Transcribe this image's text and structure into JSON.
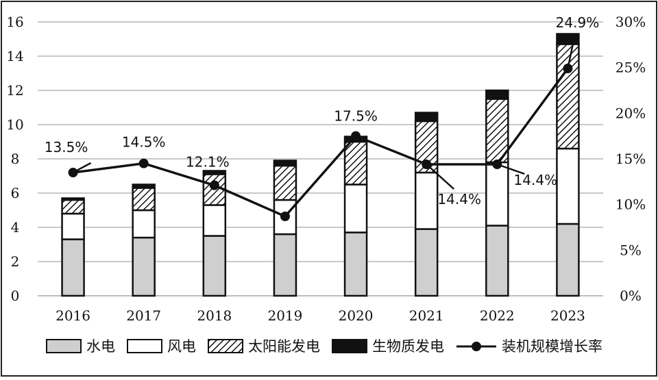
{
  "chart_data": {
    "type": "bar",
    "stacked": true,
    "categories": [
      "2016",
      "2017",
      "2018",
      "2019",
      "2020",
      "2021",
      "2022",
      "2023"
    ],
    "series": [
      {
        "name": "水电",
        "values": [
          3.3,
          3.4,
          3.5,
          3.6,
          3.7,
          3.9,
          4.1,
          4.2
        ],
        "color": "#cfcfcf"
      },
      {
        "name": "风电",
        "values": [
          1.5,
          1.6,
          1.8,
          2.0,
          2.8,
          3.3,
          3.7,
          4.4
        ],
        "color": "#ffffff"
      },
      {
        "name": "太阳能发电",
        "values": [
          0.8,
          1.3,
          1.8,
          2.0,
          2.5,
          3.0,
          3.7,
          6.1
        ],
        "color": "hatch"
      },
      {
        "name": "生物质发电",
        "values": [
          0.1,
          0.2,
          0.2,
          0.3,
          0.3,
          0.5,
          0.5,
          0.6
        ],
        "color": "#111111"
      }
    ],
    "line_series": {
      "name": "装机规模增长率",
      "values": [
        13.5,
        14.5,
        12.1,
        8.7,
        17.5,
        14.4,
        14.4,
        24.9
      ],
      "labels": [
        "13.5%",
        "14.5%",
        "12.1%",
        "",
        "17.5%",
        "14.4%",
        "14.4%",
        "24.9%"
      ],
      "color": "#111111"
    },
    "y_left": {
      "ticks": [
        "0",
        "2",
        "4",
        "6",
        "8",
        "10",
        "12",
        "14",
        "16"
      ],
      "range": [
        0,
        16
      ]
    },
    "y_right": {
      "ticks": [
        "0%",
        "5%",
        "10%",
        "15%",
        "20%",
        "25%",
        "30%"
      ],
      "range": [
        0,
        30
      ]
    },
    "grid": true,
    "legend_position": "bottom",
    "title": "",
    "xlabel": "",
    "ylabel": ""
  }
}
